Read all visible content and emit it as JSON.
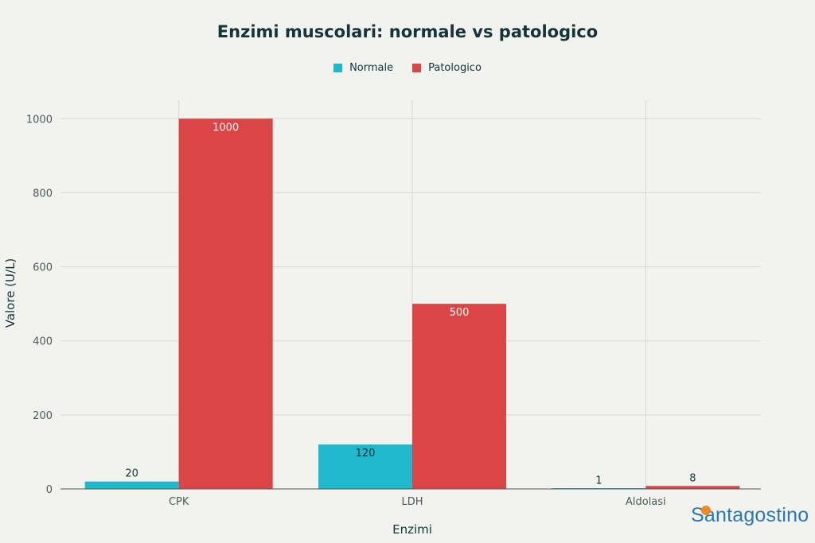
{
  "chart_data": {
    "type": "bar",
    "title": "Enzimi muscolari: normale vs patologico",
    "xlabel": "Enzimi",
    "ylabel": "Valore (U/L)",
    "categories": [
      "CPK",
      "LDH",
      "Aldolasi"
    ],
    "ylim": [
      0,
      1050
    ],
    "yticks": [
      0,
      200,
      400,
      600,
      800,
      1000
    ],
    "grid": true,
    "legend_position": "top-center",
    "series": [
      {
        "name": "Normale",
        "values": [
          20,
          120,
          1
        ],
        "labels": [
          "20",
          "120",
          "1"
        ],
        "color": "#1fb8cd"
      },
      {
        "name": "Patologico",
        "values": [
          1000,
          500,
          8
        ],
        "labels": [
          "1000",
          "500",
          "8"
        ],
        "color": "#db4545"
      }
    ]
  },
  "brand": {
    "logo_text": "Santagostino",
    "logo_color": "#2a78b6",
    "dot_color": "#f08a24"
  }
}
